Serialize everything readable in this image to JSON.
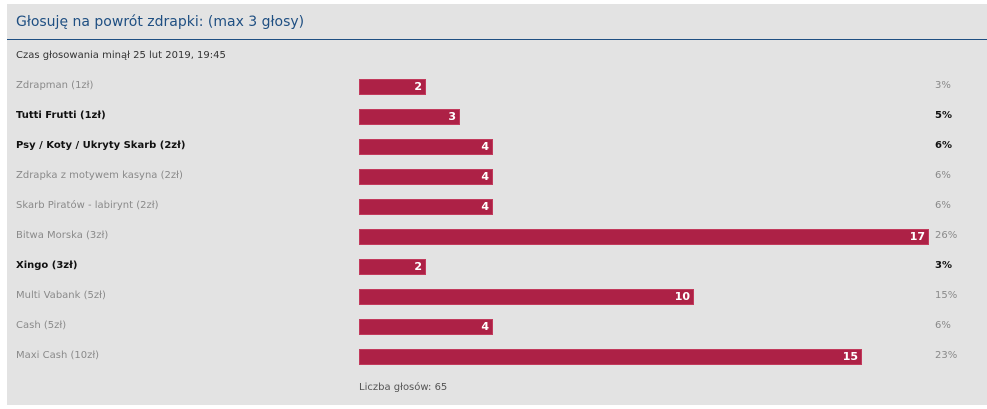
{
  "poll": {
    "title": "Głosuję na powrót zdrapki: (max 3 głosy)",
    "status": "Czas głosowania minął 25 lut 2019, 19:45",
    "max_votes": 17,
    "options": [
      {
        "label": "Zdrapman (1zł)",
        "votes": "2",
        "percent": "3%",
        "voted": false
      },
      {
        "label": "Tutti Frutti (1zł)",
        "votes": "3",
        "percent": "5%",
        "voted": true
      },
      {
        "label": "Psy / Koty / Ukryty Skarb (2zł)",
        "votes": "4",
        "percent": "6%",
        "voted": true
      },
      {
        "label": "Zdrapka z motywem kasyna (2zł)",
        "votes": "4",
        "percent": "6%",
        "voted": false
      },
      {
        "label": "Skarb Piratów - labirynt (2zł)",
        "votes": "4",
        "percent": "6%",
        "voted": false
      },
      {
        "label": "Bitwa Morska (3zł)",
        "votes": "17",
        "percent": "26%",
        "voted": false
      },
      {
        "label": "Xingo (3zł)",
        "votes": "2",
        "percent": "3%",
        "voted": true
      },
      {
        "label": "Multi Vabank (5zł)",
        "votes": "10",
        "percent": "15%",
        "voted": false
      },
      {
        "label": "Cash (5zł)",
        "votes": "4",
        "percent": "6%",
        "voted": false
      },
      {
        "label": "Maxi Cash (10zł)",
        "votes": "15",
        "percent": "23%",
        "voted": false
      }
    ],
    "total_label": "Liczba głosów: 65"
  },
  "colors": {
    "bar": "#ad2146",
    "title": "#1f4f82",
    "background": "#e3e3e3"
  }
}
